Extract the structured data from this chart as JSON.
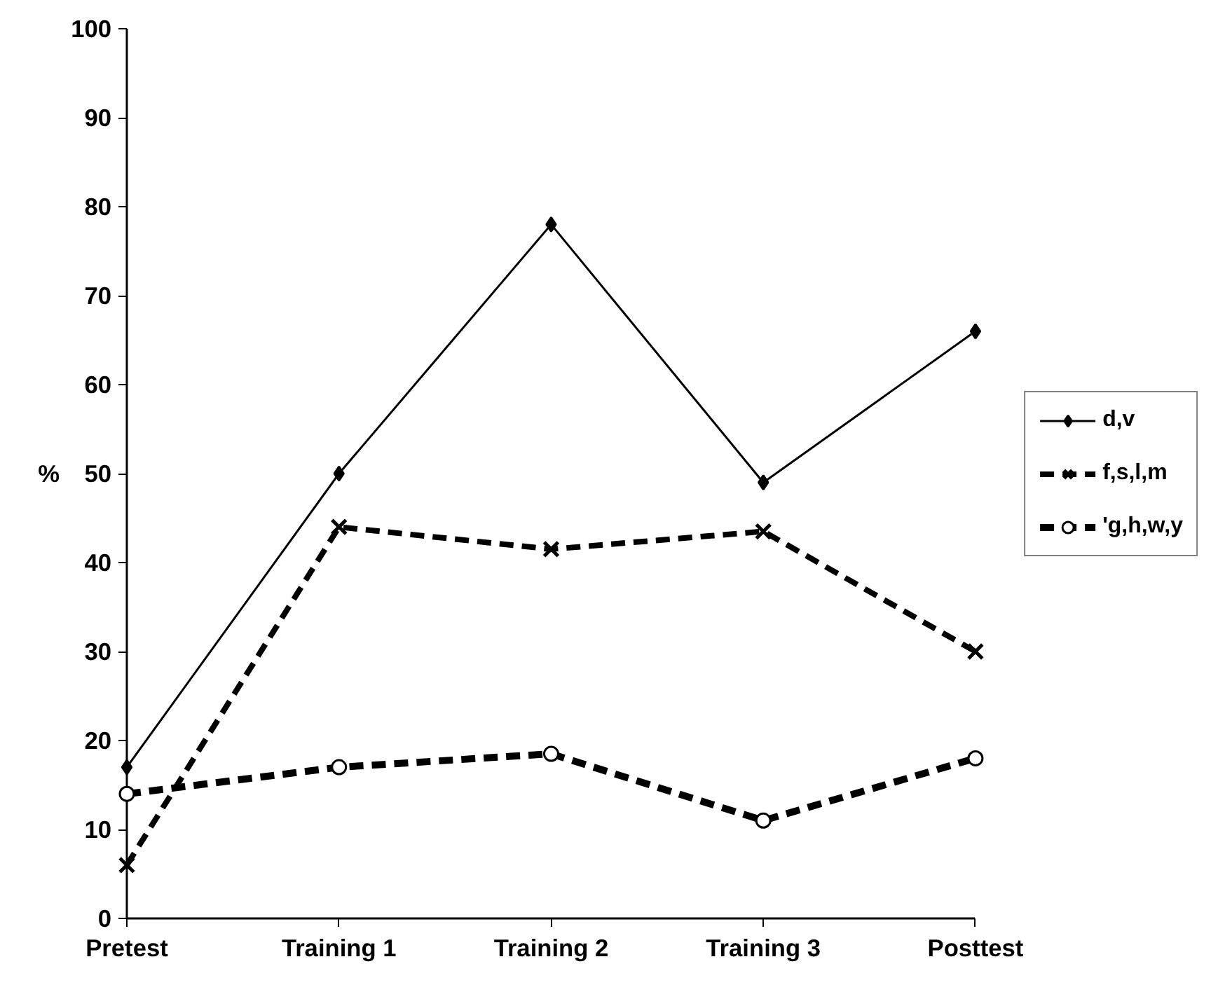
{
  "chart_data": {
    "type": "line",
    "ylabel": "%",
    "categories": [
      "Pretest",
      "Training 1",
      "Training 2",
      "Training 3",
      "Posttest"
    ],
    "series": [
      {
        "name": "d,v",
        "color": "#000000",
        "marker": "diamond",
        "line_style": "solid",
        "values": [
          17,
          50,
          78,
          49,
          66
        ]
      },
      {
        "name": "f,s,l,m",
        "color": "#000000",
        "marker": "cross",
        "line_style": "dashed",
        "values": [
          6,
          44,
          41.5,
          43.5,
          30
        ]
      },
      {
        "name": "'g,h,w,y",
        "color": "#000000",
        "marker": "circle",
        "line_style": "dashed",
        "values": [
          14,
          17,
          18.5,
          11,
          18
        ]
      }
    ],
    "ylim": [
      0,
      100
    ],
    "yticks": [
      0,
      10,
      20,
      30,
      40,
      50,
      60,
      70,
      80,
      90,
      100
    ],
    "grid": false,
    "legend": "right"
  }
}
